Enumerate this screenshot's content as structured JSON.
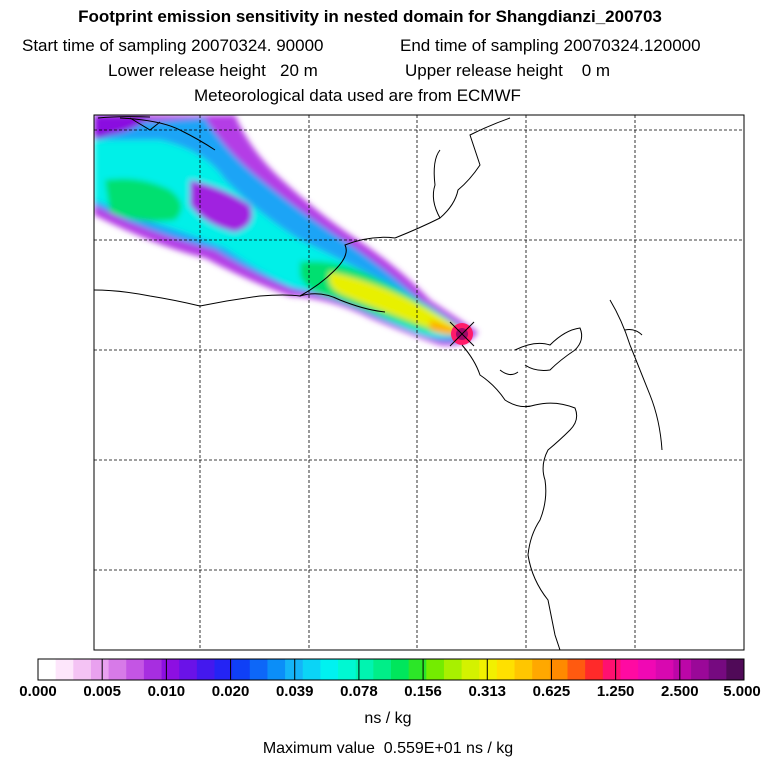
{
  "header": {
    "title": "Footprint emission sensitivity in nested domain for Shangdianzi_200703",
    "start_label": "Start time of sampling",
    "start_value": "20070324. 90000",
    "end_label": "End time of sampling",
    "end_value": "20070324.120000",
    "lower_label": "Lower release height",
    "lower_value": "20 m",
    "upper_label": "Upper release height",
    "upper_value": "0 m",
    "met_text": "Meteorological data used are from ECMWF"
  },
  "colorbar": {
    "ticks": [
      "0.000",
      "0.005",
      "0.010",
      "0.020",
      "0.039",
      "0.078",
      "0.156",
      "0.313",
      "0.625",
      "1.250",
      "2.500",
      "5.000"
    ],
    "unit": "ns / kg",
    "colors": [
      "#ffffff",
      "#fde6fb",
      "#f4c3f4",
      "#e9a1ef",
      "#d77ae8",
      "#c455e4",
      "#a72ee0",
      "#8d0fe2",
      "#6a12e8",
      "#4418ee",
      "#2424f4",
      "#0f40f6",
      "#0d67f8",
      "#0b8ef8",
      "#14b4f8",
      "#0bd4f6",
      "#00f2f0",
      "#00f8d2",
      "#00f4b0",
      "#00ee88",
      "#00e65c",
      "#2ce628",
      "#74ec00",
      "#a8f000",
      "#d4f200",
      "#f2f000",
      "#ffe000",
      "#ffc600",
      "#ffa800",
      "#ff8a00",
      "#ff5a10",
      "#ff2a2a",
      "#ff1070",
      "#ff0aa2",
      "#f008b4",
      "#d808b0",
      "#bc06a8",
      "#9a0898",
      "#760a80",
      "#500a58"
    ]
  },
  "footer": {
    "max_label": "Maximum value",
    "max_value": "0.559E+01 ns / kg"
  }
}
